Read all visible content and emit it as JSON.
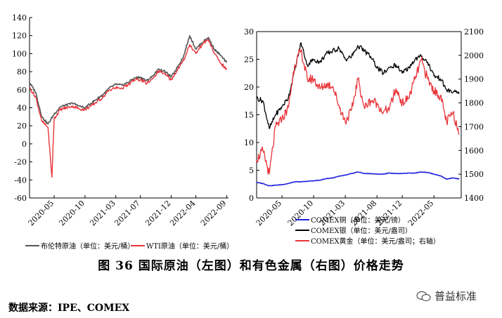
{
  "figure": {
    "caption": "图 36   国际原油（左图）和有色金属（右图）价格走势",
    "source": "数据来源：IPE、COMEX",
    "watermark": "普益标准"
  },
  "chart_data": [
    {
      "type": "line",
      "title": "",
      "xlabel": "",
      "ylabel": "",
      "ylim": [
        -60,
        140
      ],
      "yticks": [
        -60,
        -40,
        -20,
        0,
        20,
        40,
        60,
        80,
        100,
        120,
        140
      ],
      "xlim": [
        "2020-01",
        "2022-09"
      ],
      "xticks": [
        "2020-05",
        "2020-10",
        "2021-03",
        "2021-07",
        "2021-12",
        "2022-04",
        "2022-09"
      ],
      "legend_position": "bottom",
      "colors": {
        "brent": "#555555",
        "wti": "#e8343a"
      },
      "series": [
        {
          "name": "布伦特原油（单位：美元/桶）",
          "x": [
            "2020-01",
            "2020-02",
            "2020-03",
            "2020-04",
            "2020-05",
            "2020-06",
            "2020-07",
            "2020-08",
            "2020-09",
            "2020-10",
            "2020-11",
            "2020-12",
            "2021-01",
            "2021-02",
            "2021-03",
            "2021-04",
            "2021-05",
            "2021-06",
            "2021-07",
            "2021-08",
            "2021-09",
            "2021-10",
            "2021-11",
            "2021-12",
            "2022-01",
            "2022-02",
            "2022-03",
            "2022-04",
            "2022-05",
            "2022-06",
            "2022-07",
            "2022-08",
            "2022-09"
          ],
          "values": [
            68,
            57,
            30,
            22,
            33,
            41,
            43,
            45,
            42,
            40,
            45,
            50,
            55,
            62,
            66,
            65,
            68,
            73,
            74,
            70,
            75,
            83,
            80,
            74,
            85,
            97,
            120,
            105,
            112,
            118,
            105,
            98,
            90
          ]
        },
        {
          "name": "WTI原油（单位：美元/桶）",
          "x": [
            "2020-01",
            "2020-02",
            "2020-03",
            "2020-04",
            "2020-04-20",
            "2020-05",
            "2020-06",
            "2020-07",
            "2020-08",
            "2020-09",
            "2020-10",
            "2020-11",
            "2020-12",
            "2021-01",
            "2021-02",
            "2021-03",
            "2021-04",
            "2021-05",
            "2021-06",
            "2021-07",
            "2021-08",
            "2021-09",
            "2021-10",
            "2021-11",
            "2021-12",
            "2022-01",
            "2022-02",
            "2022-03",
            "2022-04",
            "2022-05",
            "2022-06",
            "2022-07",
            "2022-08",
            "2022-09"
          ],
          "values": [
            62,
            52,
            25,
            18,
            -37,
            28,
            38,
            40,
            42,
            39,
            38,
            42,
            47,
            52,
            60,
            62,
            62,
            65,
            71,
            71,
            67,
            72,
            81,
            77,
            71,
            82,
            92,
            110,
            100,
            110,
            116,
            100,
            90,
            82
          ]
        }
      ]
    },
    {
      "type": "line",
      "title": "",
      "xlabel": "",
      "ylabel": "",
      "ylim": [
        0,
        30
      ],
      "yticks": [
        0,
        5,
        10,
        15,
        20,
        25,
        30
      ],
      "y2lim": [
        1400,
        2100
      ],
      "y2ticks": [
        1400,
        1500,
        1600,
        1700,
        1800,
        1900,
        2000,
        2100
      ],
      "xlim": [
        "2020-01",
        "2022-09"
      ],
      "xticks": [
        "2020-05",
        "2020-10",
        "2021-03",
        "2021-08",
        "2021-12",
        "2022-05"
      ],
      "legend_position": "bottom",
      "colors": {
        "copper": "#1f1fdc",
        "silver": "#000000",
        "gold": "#e8343a"
      },
      "series": [
        {
          "name": "COMEX铜（单位：美元/镑）",
          "axis": "left",
          "x": [
            "2020-01",
            "2020-02",
            "2020-03",
            "2020-04",
            "2020-05",
            "2020-06",
            "2020-07",
            "2020-08",
            "2020-09",
            "2020-10",
            "2020-11",
            "2020-12",
            "2021-01",
            "2021-02",
            "2021-03",
            "2021-04",
            "2021-05",
            "2021-06",
            "2021-07",
            "2021-08",
            "2021-09",
            "2021-10",
            "2021-11",
            "2021-12",
            "2022-01",
            "2022-02",
            "2022-03",
            "2022-04",
            "2022-05",
            "2022-06",
            "2022-07",
            "2022-08",
            "2022-09"
          ],
          "values": [
            2.8,
            2.6,
            2.2,
            2.3,
            2.4,
            2.6,
            2.9,
            2.9,
            3.0,
            3.1,
            3.2,
            3.5,
            3.6,
            3.9,
            4.1,
            4.4,
            4.7,
            4.4,
            4.4,
            4.3,
            4.3,
            4.5,
            4.4,
            4.4,
            4.5,
            4.5,
            4.7,
            4.6,
            4.3,
            4.0,
            3.4,
            3.6,
            3.4
          ]
        },
        {
          "name": "COMEX银（单位：美元/盎司）",
          "axis": "left",
          "x": [
            "2020-01",
            "2020-02",
            "2020-03",
            "2020-04",
            "2020-05",
            "2020-06",
            "2020-07",
            "2020-08",
            "2020-09",
            "2020-10",
            "2020-11",
            "2020-12",
            "2021-01",
            "2021-02",
            "2021-03",
            "2021-04",
            "2021-05",
            "2021-06",
            "2021-07",
            "2021-08",
            "2021-09",
            "2021-10",
            "2021-11",
            "2021-12",
            "2022-01",
            "2022-02",
            "2022-03",
            "2022-04",
            "2022-05",
            "2022-06",
            "2022-07",
            "2022-08",
            "2022-09"
          ],
          "values": [
            18,
            17.5,
            12.5,
            15,
            16.5,
            18,
            23,
            28,
            24,
            25,
            24.5,
            26,
            26.5,
            27,
            25,
            25.5,
            27.5,
            26.5,
            25.5,
            23.5,
            22.5,
            23.5,
            24,
            22.5,
            23.5,
            25,
            25.5,
            24.5,
            22,
            21.5,
            19.5,
            19,
            19
          ]
        },
        {
          "name": "COMEX黄金（单位：美元/盎司；右轴）",
          "axis": "right",
          "x": [
            "2020-01",
            "2020-02",
            "2020-03",
            "2020-04",
            "2020-05",
            "2020-06",
            "2020-07",
            "2020-08",
            "2020-09",
            "2020-10",
            "2020-11",
            "2020-12",
            "2021-01",
            "2021-02",
            "2021-03",
            "2021-04",
            "2021-05",
            "2021-06",
            "2021-07",
            "2021-08",
            "2021-09",
            "2021-10",
            "2021-11",
            "2021-12",
            "2022-01",
            "2022-02",
            "2022-03",
            "2022-04",
            "2022-05",
            "2022-06",
            "2022-07",
            "2022-08",
            "2022-09"
          ],
          "values": [
            1560,
            1600,
            1500,
            1700,
            1730,
            1780,
            1960,
            2020,
            1900,
            1900,
            1860,
            1880,
            1870,
            1790,
            1720,
            1770,
            1900,
            1780,
            1810,
            1800,
            1760,
            1780,
            1860,
            1800,
            1820,
            1900,
            1980,
            1900,
            1850,
            1830,
            1720,
            1760,
            1670
          ]
        }
      ]
    }
  ]
}
